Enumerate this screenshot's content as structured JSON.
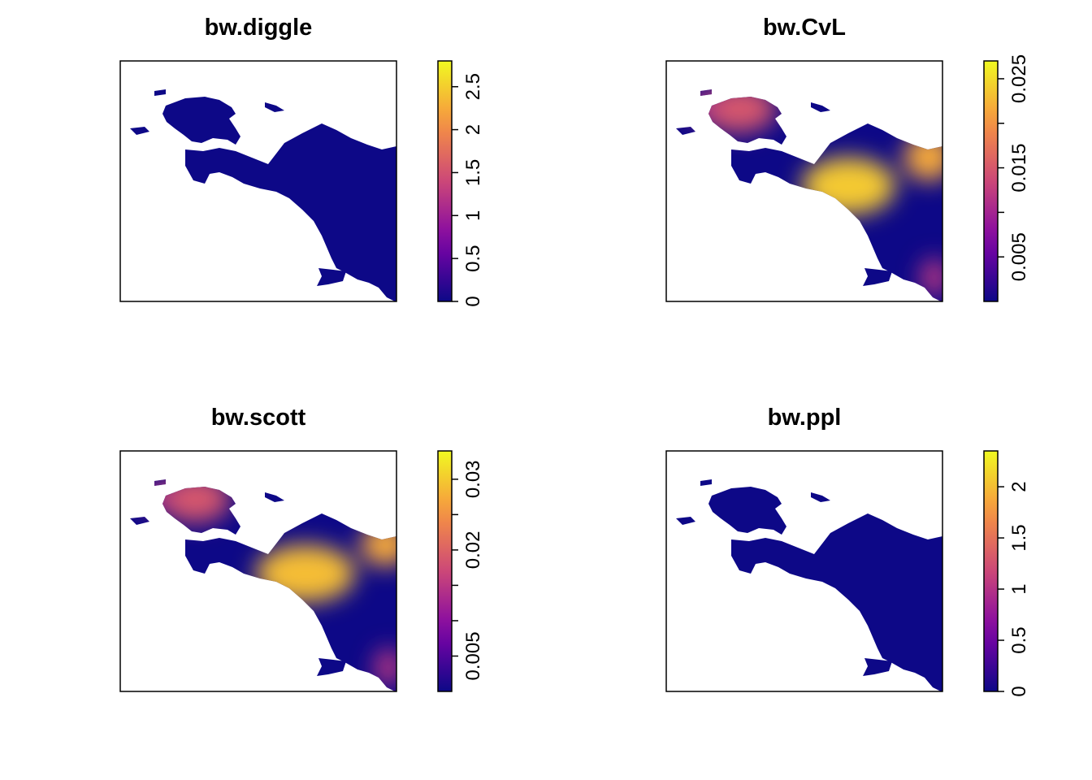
{
  "chart_data": [
    {
      "type": "heatmap",
      "title": "bw.diggle",
      "colorbar": {
        "ticks": [
          "0",
          "0.5",
          "1",
          "1.5",
          "2",
          "2.5"
        ],
        "tick_values": [
          0,
          0.5,
          1,
          1.5,
          2,
          2.5
        ],
        "range": [
          0,
          2.8
        ]
      },
      "hotspots": [],
      "colors": {
        "low": "#0d0887",
        "mid": "#e3197d",
        "high": "#f0f921"
      }
    },
    {
      "type": "heatmap",
      "title": "bw.CvL",
      "colorbar": {
        "ticks": [
          "0.005",
          "",
          "0.015",
          "",
          "0.025"
        ],
        "tick_values": [
          0.005,
          0.01,
          0.015,
          0.02,
          0.025
        ],
        "range": [
          0.0,
          0.027
        ]
      },
      "hotspots": [],
      "colors": {
        "low": "#0d0887",
        "mid": "#e3197d",
        "high": "#f0f921"
      }
    },
    {
      "type": "heatmap",
      "title": "bw.scott",
      "colorbar": {
        "ticks": [
          "0.005",
          "",
          "",
          "0.02",
          "",
          "0.03"
        ],
        "tick_values": [
          0.005,
          0.01,
          0.015,
          0.02,
          0.025,
          0.03
        ],
        "range": [
          0.0,
          0.034
        ]
      },
      "hotspots": [],
      "colors": {
        "low": "#0d0887",
        "mid": "#e3197d",
        "high": "#f0f921"
      }
    },
    {
      "type": "heatmap",
      "title": "bw.ppl",
      "colorbar": {
        "ticks": [
          "0",
          "0.5",
          "1",
          "1.5",
          "2"
        ],
        "tick_values": [
          0,
          0.5,
          1,
          1.5,
          2
        ],
        "range": [
          0,
          2.35
        ]
      },
      "hotspots": [],
      "colors": {
        "low": "#0d0887",
        "mid": "#e3197d",
        "high": "#f0f921"
      }
    }
  ]
}
